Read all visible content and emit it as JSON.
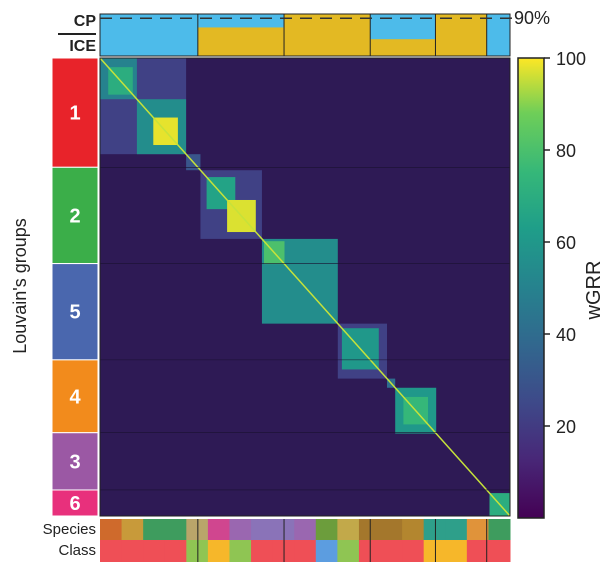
{
  "figure": {
    "threshold_label": "90%",
    "row_axis_label": "Louvain's groups",
    "colorbar_label": "wGRR",
    "top_labels": {
      "cp": "CP",
      "ice": "ICE"
    },
    "bottom_labels": {
      "species": "Species",
      "class": "Class"
    }
  },
  "colors": {
    "cp": "#4dbbea",
    "ice": "#e3b923",
    "background": "#2e1a55",
    "dashed_line": "#333333"
  },
  "chart_data": {
    "type": "heatmap",
    "value_label": "wGRR",
    "colorbar": {
      "min": 0,
      "max": 100,
      "ticks": [
        20,
        40,
        60,
        80,
        100
      ]
    },
    "threshold_percent": 90,
    "groups": [
      {
        "id": "1",
        "fraction": 0.21,
        "color": "#e8232a",
        "ice_fraction": 0.0
      },
      {
        "id": "2",
        "fraction": 0.185,
        "color": "#3bae49",
        "ice_fraction": 0.68
      },
      {
        "id": "5",
        "fraction": 0.185,
        "color": "#4a67ae",
        "ice_fraction": 1.0
      },
      {
        "id": "4",
        "fraction": 0.14,
        "color": "#f28b1c",
        "ice_fraction": 0.4
      },
      {
        "id": "3",
        "fraction": 0.11,
        "color": "#9b58a4",
        "ice_fraction": 1.0
      },
      {
        "id": "6",
        "fraction": 0.05,
        "color": "#e8307c",
        "ice_fraction": 0.0
      }
    ],
    "blocks": [
      {
        "start": 0.0,
        "end": 0.21,
        "level": 22,
        "sub": [
          {
            "start": 0.0,
            "end": 0.09,
            "level": 50
          },
          {
            "start": 0.02,
            "end": 0.08,
            "level": 70
          },
          {
            "start": 0.09,
            "end": 0.21,
            "level": 55
          },
          {
            "start": 0.13,
            "end": 0.19,
            "level": 98
          }
        ]
      },
      {
        "start": 0.21,
        "end": 0.245,
        "level": 30,
        "sub": []
      },
      {
        "start": 0.245,
        "end": 0.395,
        "level": 22,
        "sub": [
          {
            "start": 0.26,
            "end": 0.33,
            "level": 65
          },
          {
            "start": 0.31,
            "end": 0.38,
            "level": 97
          }
        ]
      },
      {
        "start": 0.395,
        "end": 0.58,
        "level": 55,
        "sub": [
          {
            "start": 0.4,
            "end": 0.45,
            "level": 80
          }
        ]
      },
      {
        "start": 0.58,
        "end": 0.7,
        "level": 22,
        "sub": [
          {
            "start": 0.59,
            "end": 0.68,
            "level": 60
          }
        ]
      },
      {
        "start": 0.7,
        "end": 0.72,
        "level": 40,
        "sub": []
      },
      {
        "start": 0.72,
        "end": 0.82,
        "level": 60,
        "sub": [
          {
            "start": 0.74,
            "end": 0.8,
            "level": 75
          }
        ]
      },
      {
        "start": 0.95,
        "end": 1.0,
        "level": 70,
        "sub": []
      }
    ],
    "species_colors": [
      "#cf6a2c",
      "#c89a3a",
      "#3e9c5e",
      "#3e9c5e",
      "#b9a56a",
      "#d0468f",
      "#9a67b0",
      "#8a73b8",
      "#8a73b8",
      "#9a67b0",
      "#6c9d3c",
      "#c2a94a",
      "#a4772c",
      "#a4772c",
      "#b3862f",
      "#2e9f8a",
      "#2e9f8a",
      "#e0933a",
      "#3e9c5e"
    ],
    "class_colors": [
      "#ef4f56",
      "#ef4f56",
      "#ef4f56",
      "#ef4f56",
      "#8fc553",
      "#f6b72a",
      "#8fc553",
      "#ef4f56",
      "#ef4f56",
      "#ef4f56",
      "#5c9de0",
      "#8fc553",
      "#ef4f56",
      "#ef4f56",
      "#ef4f56",
      "#f6b72a",
      "#f6b72a",
      "#ef4f56",
      "#ef4f56"
    ]
  }
}
